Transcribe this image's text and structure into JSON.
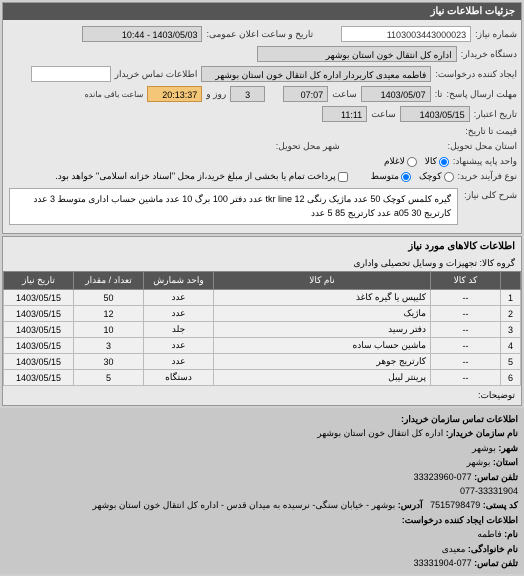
{
  "header": {
    "title": "جزئیات اطلاعات نیاز"
  },
  "form": {
    "req_number_label": "شماره نیاز:",
    "req_number": "1103003443000023",
    "announce_date_label": "تاریخ و ساعت اعلان عمومی:",
    "announce_date": "1403/05/03 - 10:44",
    "buyer_dept_label": "دستگاه خریدار:",
    "buyer_dept": "اداره کل انتقال خون استان بوشهر",
    "creator_label": "ایجاد کننده درخواست:",
    "creator": "فاطمه معیدی کاربردار اداره کل انتقال خون استان بوشهر",
    "contact_label": "اطلاعات تماس خریدار",
    "contact": "",
    "deadline_submit_label": "مهلت ارسال پاسخ:",
    "until_label": "تا:",
    "deadline_date": "1403/05/07",
    "time_label": "ساعت",
    "deadline_time": "07:07",
    "days_remain": "3",
    "days_label": "روز و",
    "hours_remain": "20:13:37",
    "remain_label": "ساعت باقی مانده",
    "validity_label": "تاریخ اعتبار:",
    "validity_date": "1403/05/15",
    "validity_time": "11:11",
    "price_label": "قیمت تا تاریخ:",
    "delivery_state_label": "استان محل تحویل:",
    "delivery_city_label": "شهر محل تحویل:",
    "unit_type_label": "واحد پایه پیشنهاد:",
    "unit_all": "کالا",
    "unit_each": "لاغلام",
    "doc_type_label": "نوع فرآیند خرید:",
    "doc_small": "کوچک",
    "doc_medium": "متوسط",
    "pay_note": "پرداخت تمام یا بخشی از مبلغ خرید،از محل \"اسناد خزانه اسلامی\" خواهد بود.",
    "keywords_label": "شرح کلی نیاز:",
    "keywords": "گیره کلمس کوچک 50 عدد ماژیک رنگی tkr line 12 عدد دفتر 100 برگ 10 عدد ماشین حساب اداری متوسط 3 عدد کارتریج 30 a05 عدد کارتریج 85 5 عدد"
  },
  "goods": {
    "title": "اطلاعات کالاهای مورد نیاز",
    "group_label": "گروه کالا:",
    "group": "تجهیزات و وسایل تحصیلی واداری",
    "columns": [
      "",
      "کد کالا",
      "نام کالا",
      "واحد شمارش",
      "تعداد / مقدار",
      "تاریخ نیاز"
    ],
    "rows": [
      [
        "1",
        "--",
        "کلیپس یا گیره کاغذ",
        "عدد",
        "50",
        "1403/05/15"
      ],
      [
        "2",
        "--",
        "ماژیک",
        "عدد",
        "12",
        "1403/05/15"
      ],
      [
        "3",
        "--",
        "دفتر رسید",
        "جلد",
        "10",
        "1403/05/15"
      ],
      [
        "4",
        "--",
        "ماشین حساب ساده",
        "عدد",
        "3",
        "1403/05/15"
      ],
      [
        "5",
        "--",
        "کارتریج جوهر",
        "عدد",
        "30",
        "1403/05/15"
      ],
      [
        "6",
        "--",
        "پرینتر لیبل",
        "دستگاه",
        "5",
        "1403/05/15"
      ]
    ],
    "explain_label": "توضیحات:"
  },
  "contact_info": {
    "title": "اطلاعات تماس سازمان خریدار:",
    "org_label": "نام سازمان خریدار:",
    "org": "اداره کل انتقال خون استان بوشهر",
    "city_label": "شهر:",
    "city": "بوشهر",
    "state_label": "استان:",
    "state": "بوشهر",
    "phone_label": "تلفن تماس:",
    "phone": "077-33323960",
    "phone2": "077-33331904",
    "postal_label": "کد پستی:",
    "postal": "7515798479",
    "address_label": "آدرس:",
    "address": "بوشهر - خیابان سنگی- نرسیده به میدان قدس - اداره کل انتقال خون استان بوشهر",
    "creator_title": "اطلاعات ایجاد کننده درخواست:",
    "name_label": "نام:",
    "name": "فاطمه",
    "family_label": "نام خانوادگی:",
    "family": "معیدی",
    "phone3_label": "تلفن تماس:",
    "phone3": "077-33331904"
  }
}
